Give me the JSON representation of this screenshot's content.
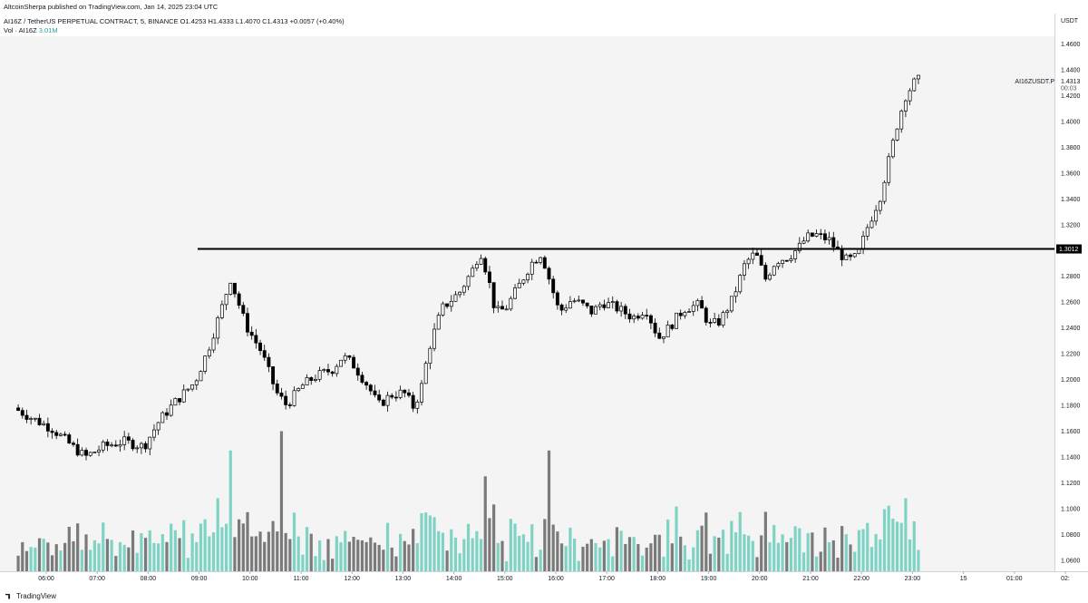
{
  "header": {
    "publish_line": "AltcoinSherpa published on TradingView.com, Jan 14, 2025 23:04 UTC",
    "symbol_line": "AI16Z / TetherUS PERPETUAL CONTRACT, 5, BINANCE  O1.4253  H1.4333  L1.4070  C1.4313  +0.0057 (+0.40%)",
    "volume_label": "Vol · AI16Z",
    "volume_value": "3.01M"
  },
  "price_axis": {
    "currency": "USDT",
    "ticks": [
      "1.4600",
      "1.4400",
      "1.4200",
      "1.4000",
      "1.3800",
      "1.3600",
      "1.3400",
      "1.3200",
      "1.3012",
      "1.2800",
      "1.2600",
      "1.2400",
      "1.2200",
      "1.2000",
      "1.1800",
      "1.1600",
      "1.1400",
      "1.1200",
      "1.1000",
      "1.0800",
      "1.0600"
    ],
    "symbol_tag": "AI16ZUSDT.P",
    "last_price": "1.4313",
    "countdown": "00:03",
    "level_label": "1.3012"
  },
  "time_axis": {
    "ticks": [
      "06:00",
      "07:00",
      "08:00",
      "09:00",
      "10:00",
      "11:00",
      "12:00",
      "13:00",
      "14:00",
      "15:00",
      "16:00",
      "17:00",
      "18:00",
      "19:00",
      "20:00",
      "21:00",
      "22:00",
      "23:00",
      "15",
      "01:00",
      "02:"
    ]
  },
  "footer": {
    "brand": "TradingView"
  },
  "colors": {
    "up": "#ffffff",
    "down": "#000000",
    "vol_up": "#7fd3c5",
    "vol_down": "#7a7a7a",
    "level": "#000000"
  },
  "chart_data": {
    "type": "candlestick",
    "ylim": [
      1.05,
      1.47
    ],
    "level": 1.3012,
    "anchors": [
      [
        5.45,
        1.178
      ],
      [
        5.9,
        1.168
      ],
      [
        6.2,
        1.162
      ],
      [
        6.6,
        1.148
      ],
      [
        6.85,
        1.14
      ],
      [
        7.2,
        1.148
      ],
      [
        7.6,
        1.152
      ],
      [
        8.0,
        1.148
      ],
      [
        8.3,
        1.168
      ],
      [
        8.6,
        1.182
      ],
      [
        9.0,
        1.198
      ],
      [
        9.25,
        1.222
      ],
      [
        9.5,
        1.252
      ],
      [
        9.7,
        1.278
      ],
      [
        9.85,
        1.26
      ],
      [
        10.0,
        1.242
      ],
      [
        10.3,
        1.222
      ],
      [
        10.6,
        1.19
      ],
      [
        10.8,
        1.18
      ],
      [
        11.1,
        1.195
      ],
      [
        11.35,
        1.202
      ],
      [
        11.7,
        1.208
      ],
      [
        11.9,
        1.218
      ],
      [
        12.1,
        1.212
      ],
      [
        12.4,
        1.195
      ],
      [
        12.6,
        1.18
      ],
      [
        12.85,
        1.188
      ],
      [
        13.1,
        1.19
      ],
      [
        13.3,
        1.178
      ],
      [
        13.45,
        1.195
      ],
      [
        13.6,
        1.225
      ],
      [
        13.85,
        1.255
      ],
      [
        14.2,
        1.268
      ],
      [
        14.45,
        1.285
      ],
      [
        14.6,
        1.3
      ],
      [
        14.75,
        1.28
      ],
      [
        14.9,
        1.252
      ],
      [
        15.1,
        1.255
      ],
      [
        15.35,
        1.272
      ],
      [
        15.6,
        1.29
      ],
      [
        15.8,
        1.298
      ],
      [
        16.0,
        1.272
      ],
      [
        16.15,
        1.252
      ],
      [
        16.4,
        1.262
      ],
      [
        16.6,
        1.258
      ],
      [
        16.8,
        1.252
      ],
      [
        17.0,
        1.26
      ],
      [
        17.3,
        1.255
      ],
      [
        17.6,
        1.248
      ],
      [
        17.85,
        1.255
      ],
      [
        18.1,
        1.232
      ],
      [
        18.3,
        1.24
      ],
      [
        18.6,
        1.255
      ],
      [
        18.9,
        1.258
      ],
      [
        19.1,
        1.242
      ],
      [
        19.3,
        1.245
      ],
      [
        19.55,
        1.262
      ],
      [
        19.8,
        1.29
      ],
      [
        20.0,
        1.298
      ],
      [
        20.2,
        1.278
      ],
      [
        20.4,
        1.292
      ],
      [
        20.65,
        1.295
      ],
      [
        20.85,
        1.302
      ],
      [
        21.0,
        1.31
      ],
      [
        21.2,
        1.312
      ],
      [
        21.45,
        1.308
      ],
      [
        21.6,
        1.3
      ],
      [
        21.8,
        1.292
      ],
      [
        22.0,
        1.295
      ],
      [
        22.2,
        1.318
      ],
      [
        22.45,
        1.342
      ],
      [
        22.65,
        1.375
      ],
      [
        22.8,
        1.4
      ],
      [
        22.95,
        1.42
      ],
      [
        23.15,
        1.432
      ]
    ],
    "volume_peaks": [
      [
        9.65,
        1.145
      ],
      [
        10.6,
        1.16
      ],
      [
        14.65,
        1.125
      ],
      [
        15.85,
        1.145
      ],
      [
        22.85,
        1.108
      ]
    ]
  }
}
